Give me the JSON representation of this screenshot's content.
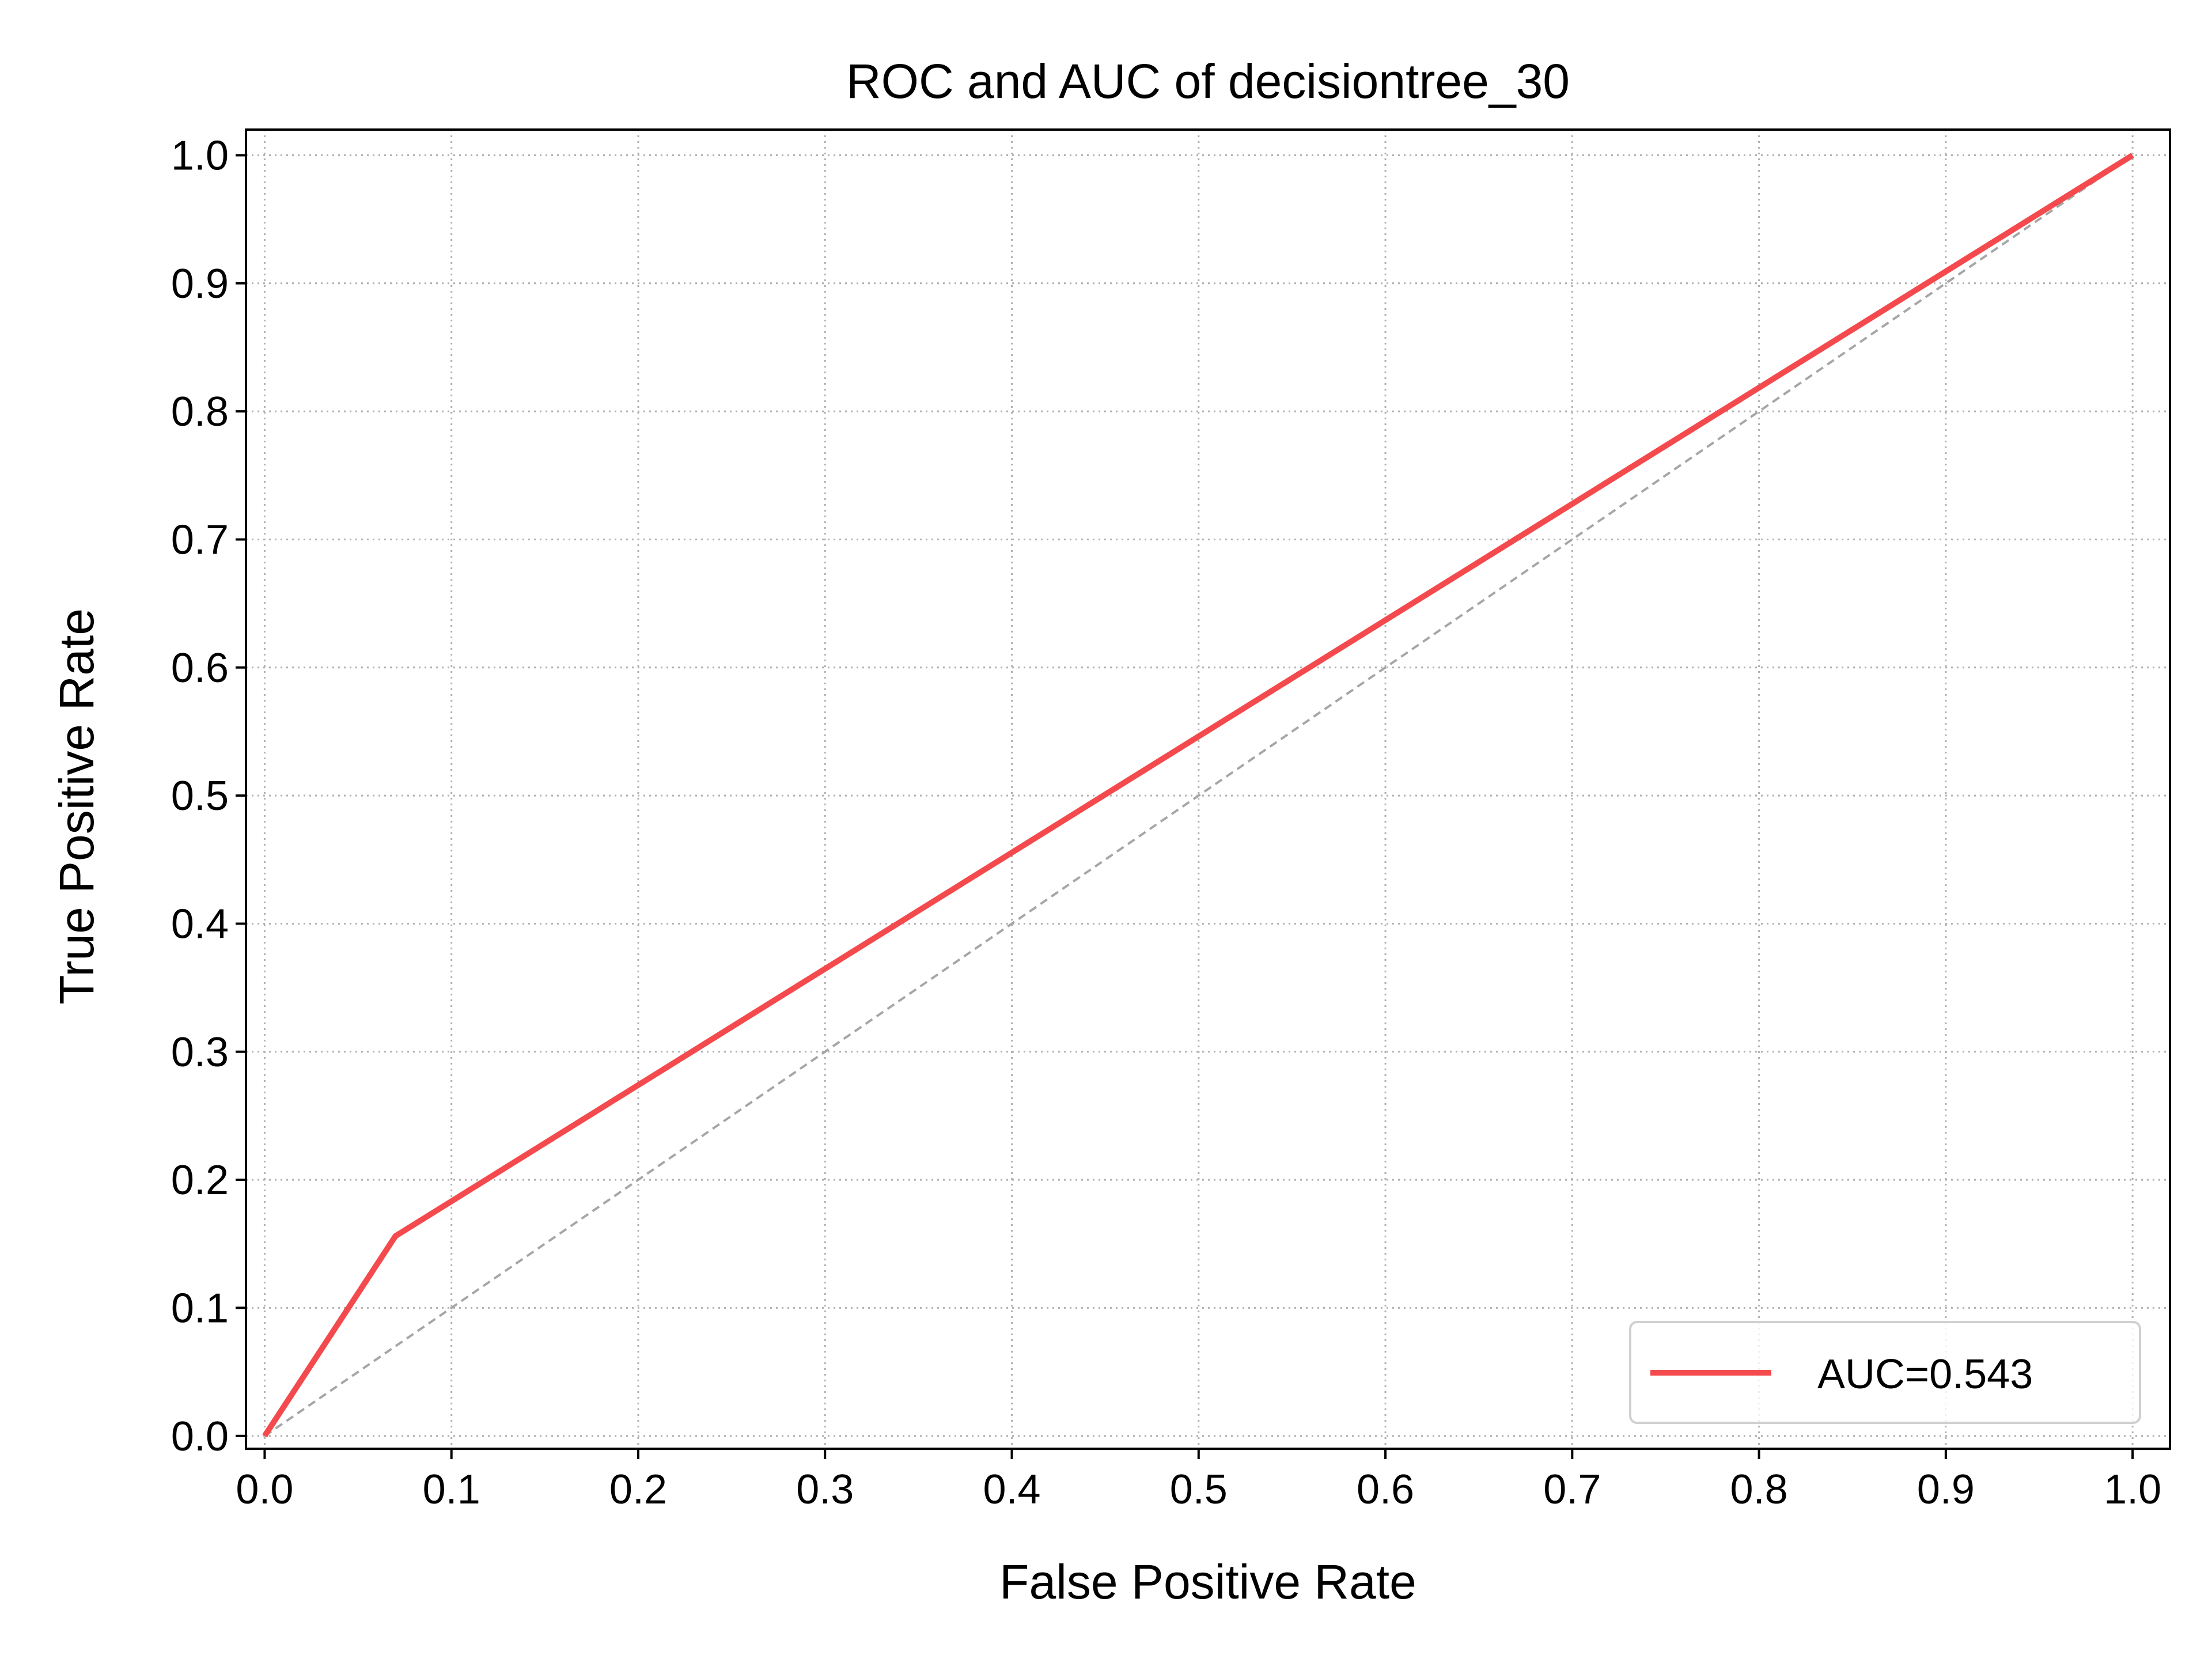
{
  "chart_data": {
    "type": "line",
    "title": "ROC and AUC of decisiontree_30",
    "xlabel": "False Positive Rate",
    "ylabel": "True Positive Rate",
    "xlim": [
      -0.01,
      1.02
    ],
    "ylim": [
      -0.01,
      1.02
    ],
    "xticks": [
      "0.0",
      "0.1",
      "0.2",
      "0.3",
      "0.4",
      "0.5",
      "0.6",
      "0.7",
      "0.8",
      "0.9",
      "1.0"
    ],
    "yticks": [
      "0.0",
      "0.1",
      "0.2",
      "0.3",
      "0.4",
      "0.5",
      "0.6",
      "0.7",
      "0.8",
      "0.9",
      "1.0"
    ],
    "grid": true,
    "legend_position": "bottom-right",
    "series": [
      {
        "name": "AUC=0.543",
        "color": "#f44a4d",
        "style": "solid",
        "x": [
          0.0,
          0.07,
          1.0
        ],
        "y": [
          0.0,
          0.156,
          1.0
        ]
      }
    ],
    "reference_line": {
      "color": "#a6a6a6",
      "style": "dashed",
      "x": [
        0.0,
        1.0
      ],
      "y": [
        0.0,
        1.0
      ]
    }
  }
}
